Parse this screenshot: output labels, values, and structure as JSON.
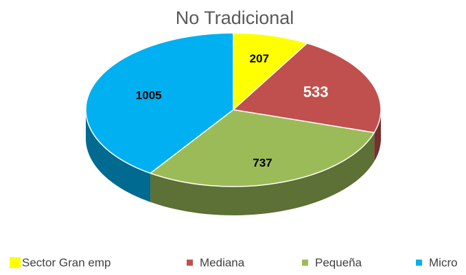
{
  "chart_data": {
    "type": "pie3d",
    "title": "No Tradicional",
    "categories": [
      "Sector Gran emp",
      "Mediana",
      "Pequeña",
      "Micro"
    ],
    "values": [
      207,
      533,
      737,
      1005
    ],
    "colors": [
      "#ffff00",
      "#c0504d",
      "#9bbb59",
      "#00b0f0"
    ],
    "legend": "bottom"
  }
}
